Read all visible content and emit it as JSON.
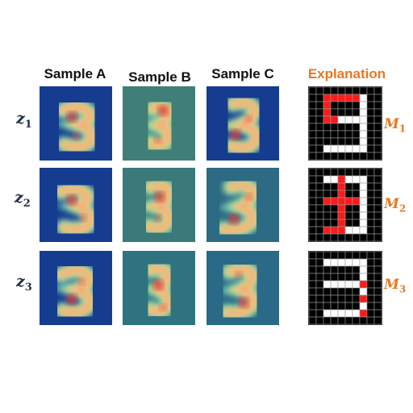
{
  "columns": [
    "Sample A",
    "Sample B",
    "Sample C"
  ],
  "explanation_title": "Explanation",
  "rows": [
    {
      "label": "z",
      "sub": "1",
      "m_label": "M",
      "m_sub": "1"
    },
    {
      "label": "z",
      "sub": "2",
      "m_label": "M",
      "m_sub": "2"
    },
    {
      "label": "z",
      "sub": "3",
      "m_label": "M",
      "m_sub": "3"
    }
  ],
  "colors": {
    "heat_background": "#1a3a8c",
    "accent": "#E87722",
    "label_navy": "#1f2f4a",
    "mask_white": "#ffffff",
    "mask_red": "#ff1a1a",
    "mask_black": "#000000"
  }
}
